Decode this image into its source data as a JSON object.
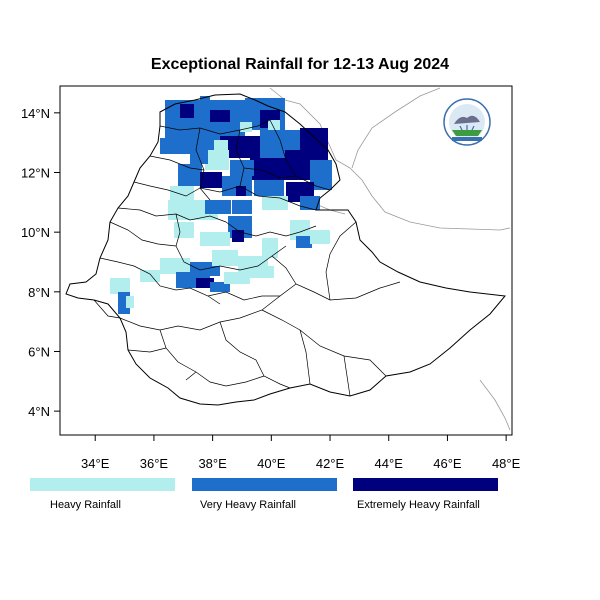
{
  "title": "Exceptional Rainfall for 12-13 Aug 2024",
  "axes": {
    "x_ticks": [
      "34°E",
      "36°E",
      "38°E",
      "40°E",
      "42°E",
      "44°E",
      "46°E",
      "48°E"
    ],
    "y_ticks": [
      "4°N",
      "6°N",
      "8°N",
      "10°N",
      "12°N",
      "14°N"
    ],
    "x_values": [
      34,
      36,
      38,
      40,
      42,
      44,
      46,
      48
    ],
    "y_values": [
      4,
      6,
      8,
      10,
      12,
      14
    ],
    "xlim": [
      32.8,
      48.2
    ],
    "ylim": [
      3.2,
      14.9
    ]
  },
  "legend": [
    {
      "label": "Heavy Rainfall",
      "color": "#b3eeee"
    },
    {
      "label": "Very Heavy Rainfall",
      "color": "#1e6fcc"
    },
    {
      "label": "Extremely Heavy Rainfall",
      "color": "#00007f"
    }
  ],
  "logo": {
    "icon": "meteorology-agency-logo-icon"
  },
  "colors": {
    "border": "#000000",
    "neighbor_border": "#999999"
  }
}
